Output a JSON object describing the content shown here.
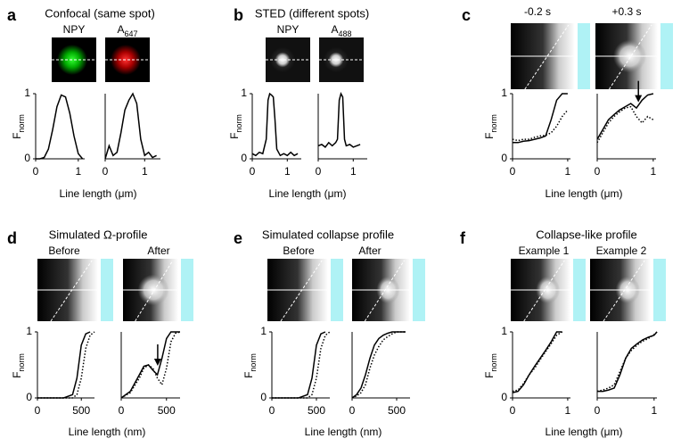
{
  "panels": [
    {
      "letter": "a",
      "title": "Confocal (same spot)",
      "image_labels": [
        {
          "text": "NPY"
        },
        {
          "text": "A",
          "sub": "647"
        }
      ],
      "ylabel": {
        "text": "F",
        "sub": "norm"
      },
      "xlabel": "Line length (μm)",
      "plots": [
        {
          "xlim": [
            0,
            1.15
          ],
          "ylim": [
            0,
            1
          ],
          "xticks": [
            0,
            1
          ],
          "yticks": [
            0,
            1
          ],
          "series": [
            {
              "dash": "solid",
              "x": [
                0,
                0.1,
                0.2,
                0.3,
                0.4,
                0.5,
                0.6,
                0.7,
                0.8,
                0.9,
                1.0,
                1.1
              ],
              "values": [
                0,
                0,
                0.02,
                0.15,
                0.45,
                0.8,
                0.98,
                0.95,
                0.7,
                0.35,
                0.08,
                0
              ]
            }
          ]
        },
        {
          "xlim": [
            0,
            1.4
          ],
          "ylim": [
            0,
            1
          ],
          "xticks": [
            0,
            1
          ],
          "series": [
            {
              "dash": "solid",
              "x": [
                0,
                0.1,
                0.2,
                0.3,
                0.4,
                0.5,
                0.6,
                0.7,
                0.8,
                0.9,
                1.0,
                1.1,
                1.2,
                1.3
              ],
              "values": [
                0,
                0.2,
                0.05,
                0.1,
                0.4,
                0.75,
                0.9,
                1,
                0.85,
                0.3,
                0.05,
                0.1,
                0.02,
                0.05
              ]
            }
          ]
        }
      ]
    },
    {
      "letter": "b",
      "title": "STED (different spots)",
      "image_labels": [
        {
          "text": "NPY"
        },
        {
          "text": "A",
          "sub": "488"
        }
      ],
      "ylabel": {
        "text": "F",
        "sub": "norm"
      },
      "xlabel": "Line length (μm)",
      "plots": [
        {
          "xlim": [
            0,
            1.4
          ],
          "ylim": [
            0,
            1
          ],
          "xticks": [
            0,
            1
          ],
          "yticks": [
            0,
            1
          ],
          "series": [
            {
              "dash": "solid",
              "x": [
                0,
                0.1,
                0.2,
                0.3,
                0.4,
                0.45,
                0.5,
                0.55,
                0.6,
                0.65,
                0.7,
                0.8,
                0.9,
                1.0,
                1.1,
                1.2,
                1.3
              ],
              "values": [
                0.08,
                0.05,
                0.1,
                0.08,
                0.3,
                0.9,
                1,
                0.98,
                0.95,
                0.6,
                0.15,
                0.05,
                0.08,
                0.05,
                0.1,
                0.05,
                0.08
              ]
            }
          ]
        },
        {
          "xlim": [
            0,
            1.4
          ],
          "ylim": [
            0,
            1
          ],
          "xticks": [
            0,
            1
          ],
          "series": [
            {
              "dash": "solid",
              "x": [
                0,
                0.1,
                0.2,
                0.3,
                0.4,
                0.5,
                0.55,
                0.6,
                0.65,
                0.7,
                0.75,
                0.8,
                0.9,
                1.0,
                1.1,
                1.2
              ],
              "values": [
                0.2,
                0.22,
                0.18,
                0.25,
                0.2,
                0.25,
                0.3,
                0.9,
                1,
                0.95,
                0.3,
                0.2,
                0.22,
                0.18,
                0.2,
                0.22
              ]
            }
          ]
        }
      ]
    },
    {
      "letter": "c",
      "image_labels": [
        {
          "text": "-0.2 s"
        },
        {
          "text": "+0.3 s"
        }
      ],
      "ylabel": {
        "text": "F",
        "sub": "norm"
      },
      "xlabel": "Line length (μm)",
      "plots": [
        {
          "xlim": [
            0,
            1.05
          ],
          "ylim": [
            0,
            1
          ],
          "xticks": [
            0,
            1
          ],
          "yticks": [
            0,
            1
          ],
          "series": [
            {
              "dash": "solid",
              "x": [
                0,
                0.1,
                0.2,
                0.3,
                0.4,
                0.5,
                0.6,
                0.7,
                0.8,
                0.9,
                1.0
              ],
              "values": [
                0.25,
                0.25,
                0.27,
                0.28,
                0.3,
                0.32,
                0.35,
                0.6,
                0.9,
                1,
                1
              ]
            },
            {
              "dash": "dotted",
              "x": [
                0,
                0.1,
                0.2,
                0.3,
                0.4,
                0.5,
                0.6,
                0.7,
                0.8,
                0.9,
                1.0
              ],
              "values": [
                0.3,
                0.28,
                0.3,
                0.3,
                0.33,
                0.35,
                0.36,
                0.4,
                0.5,
                0.65,
                0.75
              ]
            }
          ]
        },
        {
          "xlim": [
            0,
            1.05
          ],
          "ylim": [
            0,
            1
          ],
          "xticks": [
            0,
            1
          ],
          "series": [
            {
              "dash": "solid",
              "x": [
                0,
                0.1,
                0.2,
                0.3,
                0.4,
                0.5,
                0.6,
                0.7,
                0.8,
                0.9,
                1.0
              ],
              "values": [
                0.3,
                0.45,
                0.6,
                0.68,
                0.75,
                0.8,
                0.85,
                0.78,
                0.9,
                0.98,
                1
              ]
            },
            {
              "dash": "dotted",
              "x": [
                0,
                0.1,
                0.2,
                0.3,
                0.4,
                0.5,
                0.6,
                0.7,
                0.8,
                0.9,
                1.0
              ],
              "values": [
                0.25,
                0.4,
                0.55,
                0.65,
                0.72,
                0.78,
                0.8,
                0.65,
                0.55,
                0.65,
                0.6
              ]
            }
          ]
        }
      ]
    },
    {
      "letter": "d",
      "title": "Simulated Ω-profile",
      "image_labels": [
        {
          "text": "Before"
        },
        {
          "text": "After"
        }
      ],
      "ylabel": {
        "text": "F",
        "sub": "norm"
      },
      "xlabel": "Line length (nm)",
      "plots": [
        {
          "xlim": [
            0,
            650
          ],
          "ylim": [
            0,
            1
          ],
          "xticks": [
            0,
            500
          ],
          "yticks": [
            0,
            1
          ],
          "series": [
            {
              "dash": "solid",
              "x": [
                0,
                100,
                200,
                300,
                400,
                450,
                500,
                550,
                600
              ],
              "values": [
                0,
                0,
                0,
                0,
                0.05,
                0.3,
                0.8,
                0.97,
                1
              ]
            },
            {
              "dash": "dotted",
              "x": [
                0,
                100,
                200,
                300,
                400,
                450,
                500,
                550,
                600,
                650
              ],
              "values": [
                0,
                0,
                0,
                0,
                0,
                0.05,
                0.3,
                0.75,
                0.95,
                1
              ]
            }
          ]
        },
        {
          "xlim": [
            0,
            650
          ],
          "ylim": [
            0,
            1
          ],
          "xticks": [
            0,
            500
          ],
          "series": [
            {
              "dash": "solid",
              "x": [
                0,
                100,
                200,
                250,
                300,
                350,
                400,
                450,
                500,
                550,
                600,
                650
              ],
              "values": [
                0,
                0.1,
                0.35,
                0.48,
                0.5,
                0.42,
                0.35,
                0.6,
                0.9,
                1,
                1,
                1
              ]
            },
            {
              "dash": "dotted",
              "x": [
                0,
                100,
                200,
                250,
                300,
                350,
                400,
                450,
                500,
                550,
                600,
                650
              ],
              "values": [
                0,
                0.08,
                0.3,
                0.45,
                0.5,
                0.45,
                0.3,
                0.2,
                0.45,
                0.85,
                0.98,
                1
              ]
            }
          ]
        }
      ]
    },
    {
      "letter": "e",
      "title": "Simulated collapse profile",
      "image_labels": [
        {
          "text": "Before"
        },
        {
          "text": "After"
        }
      ],
      "ylabel": {
        "text": "F",
        "sub": "norm"
      },
      "xlabel": "Line length (nm)",
      "plots": [
        {
          "xlim": [
            0,
            650
          ],
          "ylim": [
            0,
            1
          ],
          "xticks": [
            0,
            500
          ],
          "yticks": [
            0,
            1
          ],
          "series": [
            {
              "dash": "solid",
              "x": [
                0,
                100,
                200,
                300,
                400,
                450,
                500,
                550,
                600
              ],
              "values": [
                0,
                0,
                0,
                0,
                0.05,
                0.3,
                0.8,
                0.97,
                1
              ]
            },
            {
              "dash": "dotted",
              "x": [
                0,
                100,
                200,
                300,
                400,
                450,
                500,
                550,
                600,
                650
              ],
              "values": [
                0,
                0,
                0,
                0,
                0,
                0.05,
                0.3,
                0.75,
                0.95,
                1
              ]
            }
          ]
        },
        {
          "xlim": [
            0,
            650
          ],
          "ylim": [
            0,
            1
          ],
          "xticks": [
            0,
            500
          ],
          "series": [
            {
              "dash": "solid",
              "x": [
                0,
                50,
                100,
                150,
                200,
                250,
                300,
                350,
                400,
                450,
                500,
                550,
                600
              ],
              "values": [
                0,
                0.05,
                0.15,
                0.35,
                0.6,
                0.8,
                0.9,
                0.95,
                0.98,
                1,
                1,
                1,
                1
              ]
            },
            {
              "dash": "dotted",
              "x": [
                0,
                50,
                100,
                150,
                200,
                250,
                300,
                350,
                400,
                450,
                500,
                550,
                600
              ],
              "values": [
                0,
                0.03,
                0.08,
                0.2,
                0.45,
                0.65,
                0.78,
                0.88,
                0.93,
                0.97,
                1,
                1,
                1
              ]
            }
          ]
        }
      ]
    },
    {
      "letter": "f",
      "title": "Collapse-like profile",
      "image_labels": [
        {
          "text": "Example 1"
        },
        {
          "text": "Example 2"
        }
      ],
      "ylabel": {
        "text": "F",
        "sub": "norm"
      },
      "xlabel": "Line length (μm)",
      "plots": [
        {
          "xlim": [
            0,
            1.05
          ],
          "ylim": [
            0,
            1
          ],
          "xticks": [
            0,
            1
          ],
          "yticks": [
            0,
            1
          ],
          "series": [
            {
              "dash": "solid",
              "x": [
                0,
                0.1,
                0.2,
                0.3,
                0.4,
                0.5,
                0.6,
                0.7,
                0.8,
                0.9
              ],
              "values": [
                0.08,
                0.1,
                0.2,
                0.35,
                0.48,
                0.6,
                0.72,
                0.85,
                1,
                1
              ]
            },
            {
              "dash": "dotted",
              "x": [
                0,
                0.1,
                0.2,
                0.3,
                0.4,
                0.5,
                0.6,
                0.7,
                0.8,
                0.9
              ],
              "values": [
                0.1,
                0.12,
                0.22,
                0.35,
                0.45,
                0.58,
                0.7,
                0.82,
                0.95,
                1
              ]
            }
          ]
        },
        {
          "xlim": [
            0,
            1.05
          ],
          "ylim": [
            0,
            1
          ],
          "xticks": [
            0,
            1
          ],
          "series": [
            {
              "dash": "solid",
              "x": [
                0,
                0.1,
                0.2,
                0.3,
                0.4,
                0.5,
                0.6,
                0.7,
                0.8,
                0.9,
                1.0,
                1.05
              ],
              "values": [
                0.1,
                0.1,
                0.12,
                0.15,
                0.35,
                0.6,
                0.75,
                0.82,
                0.88,
                0.92,
                0.95,
                1
              ]
            },
            {
              "dash": "dotted",
              "x": [
                0,
                0.1,
                0.2,
                0.3,
                0.4,
                0.5,
                0.6,
                0.7,
                0.8,
                0.9,
                1.0,
                1.05
              ],
              "values": [
                0.1,
                0.12,
                0.15,
                0.2,
                0.4,
                0.6,
                0.72,
                0.8,
                0.86,
                0.9,
                0.96,
                1
              ]
            }
          ]
        }
      ]
    }
  ]
}
